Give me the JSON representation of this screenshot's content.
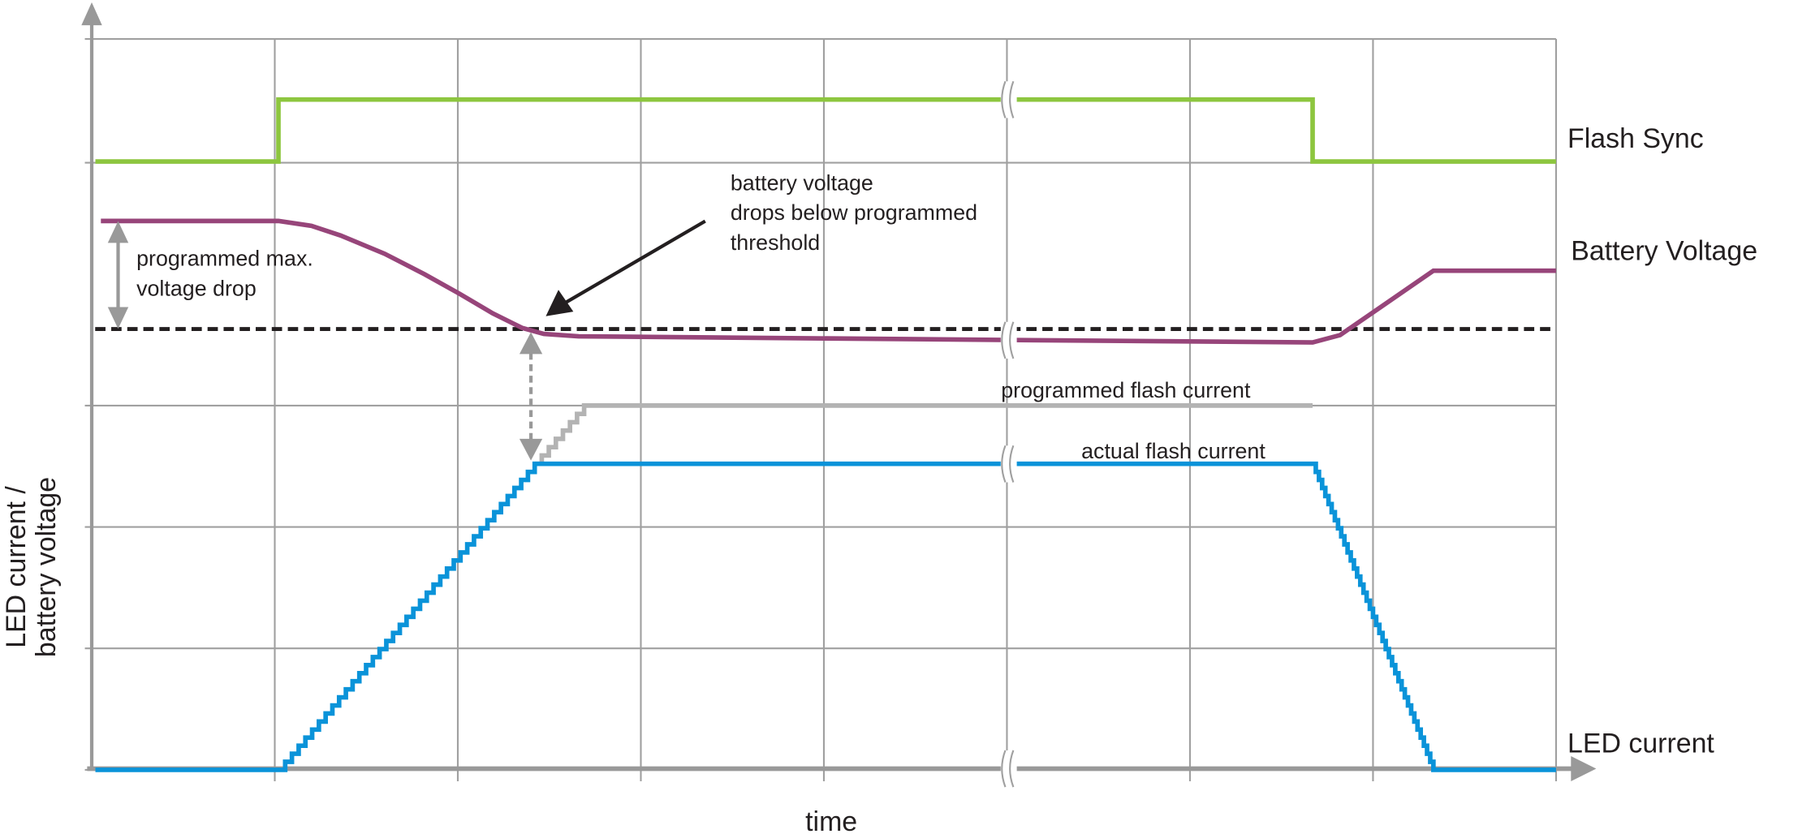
{
  "chart_data": {
    "type": "line",
    "title": "",
    "xlabel": "time",
    "ylabel": "LED current / battery voltage",
    "x_unit_note_visible": false,
    "xlim": [
      0,
      8
    ],
    "ylim": [
      0,
      6
    ],
    "grid": true,
    "series": [
      {
        "name": "Flash Sync",
        "color": "#8dc63f",
        "stepped_ramps": false,
        "x": [
          0.02,
          1.02,
          1.02,
          6.67,
          6.67,
          8.0
        ],
        "y": [
          5.01,
          5.01,
          5.52,
          5.52,
          5.01,
          5.01
        ]
      },
      {
        "name": "Battery Voltage",
        "color": "#97457a",
        "stepped_ramps": false,
        "x": [
          0.05,
          1.02,
          1.2,
          1.36,
          1.6,
          1.82,
          2.01,
          2.19,
          2.35,
          2.47,
          2.66,
          5.01,
          6.67,
          6.82,
          7.33,
          8.0
        ],
        "y": [
          4.52,
          4.52,
          4.48,
          4.4,
          4.25,
          4.08,
          3.92,
          3.76,
          3.64,
          3.59,
          3.57,
          3.54,
          3.52,
          3.58,
          4.11,
          4.11
        ]
      },
      {
        "name": "programmed flash current",
        "color": "#b3b3b3",
        "stepped_ramps": true,
        "x": [
          2.42,
          2.69,
          6.67
        ],
        "y": [
          2.52,
          3.0,
          3.0
        ]
      },
      {
        "name": "actual flash current",
        "color": "#0a93d9",
        "stepped_ramps": true,
        "x": [
          0.02,
          1.02,
          2.42,
          6.67,
          7.33,
          8.0
        ],
        "y": [
          0.0,
          0.0,
          2.52,
          2.52,
          0.0,
          0.0
        ]
      }
    ],
    "threshold": {
      "y": 3.63,
      "color": "#231f20",
      "style": "dashed"
    },
    "labels": {
      "flash_sync": "Flash Sync",
      "battery_voltage": "Battery Voltage",
      "led_current": "LED current",
      "programmed_flash_current": "programmed flash current",
      "actual_flash_current": "actual flash current"
    },
    "annotations": {
      "max_drop_line1": "programmed max.",
      "max_drop_line2": "voltage drop",
      "threshold_line1": "battery voltage",
      "threshold_line2": "drops below programmed",
      "threshold_line3": "threshold"
    },
    "axis_break_at_x": 5.01,
    "ylabel_line1": "LED current /",
    "ylabel_line2": "battery voltage"
  }
}
